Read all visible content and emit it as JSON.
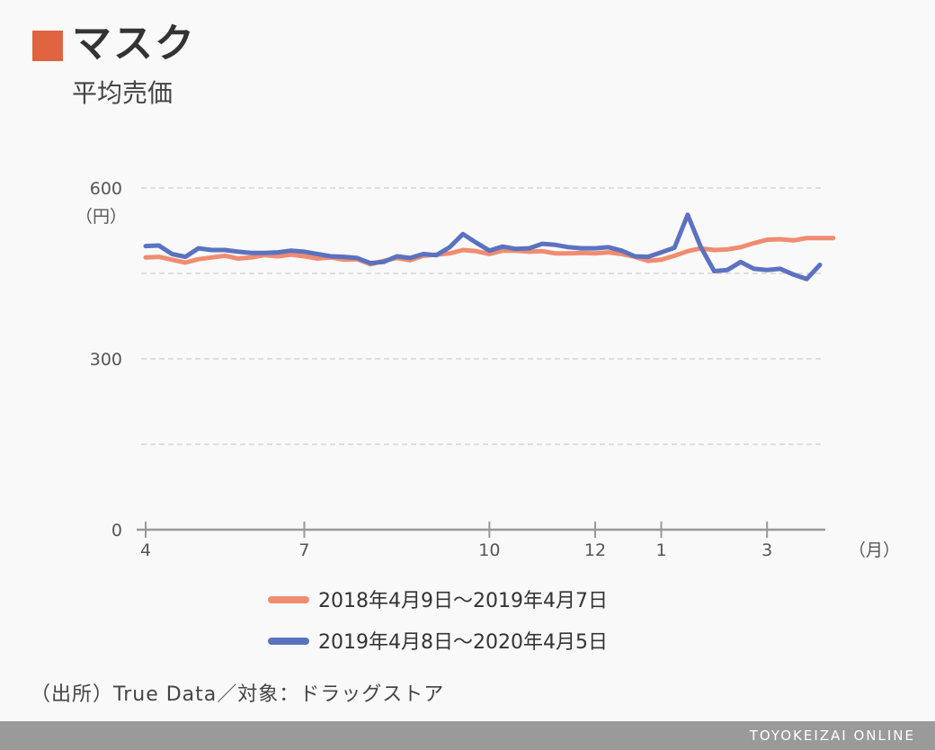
{
  "header": {
    "title": "マスク",
    "subtitle": "平均売価",
    "accent_color": "#e06440"
  },
  "source": "（出所）True Data／対象：ドラッグストア",
  "footer": {
    "brand": "TOYOKEIZAI ONLINE"
  },
  "chart_data": {
    "type": "line",
    "title": "マスク",
    "subtitle": "平均売価",
    "ylabel": "（円）",
    "xlabel": "（月）",
    "ylim": [
      0,
      700
    ],
    "y_ticks": [
      {
        "value": 0,
        "label": "0"
      },
      {
        "value": 300,
        "label": "300"
      },
      {
        "value": 600,
        "label": "600"
      }
    ],
    "gridlines": [
      150,
      300,
      450,
      600
    ],
    "x_ticks": [
      {
        "index": 0,
        "label": "4"
      },
      {
        "index": 12,
        "label": "7"
      },
      {
        "index": 26,
        "label": "10"
      },
      {
        "index": 34,
        "label": "12"
      },
      {
        "index": 39,
        "label": "1"
      },
      {
        "index": 47,
        "label": "3"
      }
    ],
    "grid": true,
    "legend_position": "bottom",
    "series": [
      {
        "name": "2018年4月9日～2019年4月7日",
        "color": "#f08c70",
        "values": [
          478,
          479,
          474,
          469,
          475,
          478,
          481,
          476,
          478,
          482,
          480,
          483,
          480,
          476,
          478,
          474,
          475,
          466,
          472,
          477,
          473,
          481,
          483,
          485,
          491,
          489,
          484,
          490,
          490,
          488,
          489,
          485,
          485,
          486,
          485,
          487,
          484,
          479,
          472,
          474,
          481,
          489,
          494,
          491,
          492,
          496,
          503,
          509,
          510,
          508,
          512,
          512,
          512
        ]
      },
      {
        "name": "2019年4月8日～2020年4月5日",
        "color": "#5b72c0",
        "values": [
          498,
          499,
          484,
          479,
          494,
          491,
          491,
          488,
          486,
          486,
          487,
          490,
          488,
          484,
          480,
          479,
          477,
          468,
          470,
          480,
          477,
          484,
          482,
          496,
          519,
          504,
          490,
          497,
          493,
          494,
          502,
          500,
          496,
          494,
          494,
          496,
          490,
          480,
          479,
          487,
          495,
          553,
          496,
          454,
          456,
          470,
          458,
          456,
          458,
          448,
          440,
          465
        ]
      }
    ]
  }
}
